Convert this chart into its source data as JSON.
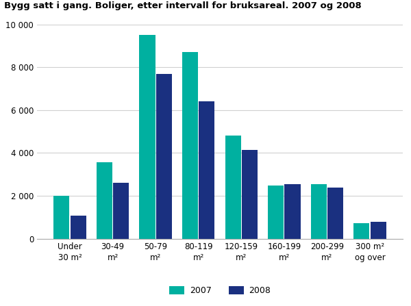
{
  "title": "Bygg satt i gang. Boliger, etter intervall for bruksareal. 2007 og 2008",
  "categories": [
    "Under\n30 m²",
    "30-49\nm²",
    "50-79\nm²",
    "80-119\nm²",
    "120-159\nm²",
    "160-199\nm²",
    "200-299\nm²",
    "300 m²\nog over"
  ],
  "values_2007": [
    2000,
    3580,
    9520,
    8720,
    4800,
    2480,
    2540,
    730
  ],
  "values_2008": [
    1080,
    2620,
    7680,
    6400,
    4150,
    2540,
    2400,
    790
  ],
  "color_2007": "#00B0A0",
  "color_2008": "#1A3080",
  "legend_labels": [
    "2007",
    "2008"
  ],
  "ylim": [
    0,
    10000
  ],
  "yticks": [
    0,
    2000,
    4000,
    6000,
    8000,
    10000
  ],
  "ytick_labels": [
    "0",
    "2 000",
    "4 000",
    "6 000",
    "8 000",
    "10 000"
  ],
  "grid_color": "#d0d0d0",
  "background_color": "#ffffff",
  "title_fontsize": 9.5,
  "tick_fontsize": 8.5,
  "legend_fontsize": 9
}
